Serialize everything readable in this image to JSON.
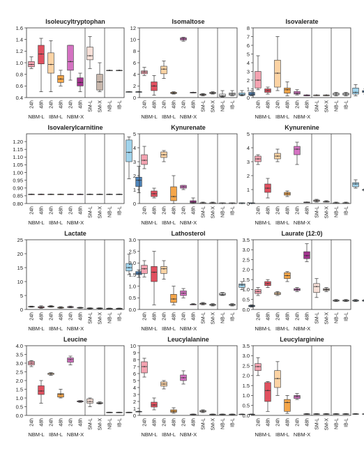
{
  "figure": {
    "category_groups": [
      {
        "label": "NBM-L",
        "ticks": [
          "24h",
          "48h"
        ]
      },
      {
        "label": "IBM-L",
        "ticks": [
          "24h",
          "48h"
        ]
      },
      {
        "label": "NBM-X",
        "ticks": [
          "24h",
          "48h"
        ]
      },
      {
        "label": "",
        "ticks": [
          "SM-L"
        ]
      },
      {
        "label": "",
        "ticks": [
          "SM-X"
        ]
      },
      {
        "label": "",
        "ticks": [
          "NB-L"
        ]
      },
      {
        "label": "",
        "ticks": [
          "IB-L"
        ]
      }
    ],
    "box_colors": [
      "#f4a3b1",
      "#e0505f",
      "#fcd3a4",
      "#f5a64a",
      "#d472c2",
      "#a3348f",
      "#f6dfd7",
      "#c8b7ac",
      "#ececec",
      "#d9d9d9",
      "#9fd3ec",
      "#4f86bd"
    ]
  },
  "chart_data": [
    {
      "type": "box",
      "title": "Isoleucyltryptophan",
      "ylim": [
        0.4,
        1.6
      ],
      "yticks": [
        0.4,
        0.6,
        0.8,
        1.0,
        1.2,
        1.4,
        1.6
      ],
      "boxes": [
        [
          0.9,
          0.93,
          0.97,
          1.02,
          1.1
        ],
        [
          0.5,
          0.98,
          1.15,
          1.3,
          1.42
        ],
        [
          0.5,
          0.82,
          0.97,
          1.17,
          1.38
        ],
        [
          0.6,
          0.66,
          0.72,
          0.78,
          0.87
        ],
        [
          0.7,
          0.87,
          1.02,
          1.3,
          1.3
        ],
        [
          0.5,
          0.6,
          0.66,
          0.74,
          0.82
        ],
        [
          0.9,
          1.05,
          1.12,
          1.27,
          1.45
        ],
        [
          0.5,
          0.53,
          0.67,
          0.8,
          1.0
        ],
        [
          0.87,
          0.87,
          0.87,
          0.87,
          0.87
        ],
        [
          0.87,
          0.87,
          0.87,
          0.87,
          0.87
        ],
        [
          0.5,
          0.5,
          0.5,
          0.5,
          0.5
        ],
        [
          0.5,
          0.5,
          0.5,
          0.5,
          0.5
        ]
      ]
    },
    {
      "type": "box",
      "title": "Isomaltose",
      "ylim": [
        0,
        12
      ],
      "yticks": [
        0,
        2,
        4,
        6,
        8,
        10,
        12
      ],
      "boxes": [
        [
          3.8,
          4.1,
          4.4,
          4.6,
          5.2
        ],
        [
          0.4,
          1.2,
          2.0,
          2.7,
          3.8
        ],
        [
          3.3,
          4.1,
          4.9,
          5.4,
          6.3
        ],
        [
          0.6,
          0.7,
          0.8,
          0.9,
          1.0
        ],
        [
          9.7,
          9.9,
          10.1,
          10.3,
          10.4
        ],
        [
          0.8,
          0.8,
          0.9,
          0.9,
          0.9
        ],
        [
          0.3,
          0.4,
          0.5,
          0.6,
          0.7
        ],
        [
          0.6,
          0.7,
          0.8,
          0.9,
          1.0
        ],
        [
          0.1,
          0.2,
          0.3,
          0.6,
          1.2
        ],
        [
          0.3,
          0.4,
          0.6,
          0.8,
          1.2
        ],
        [
          0.3,
          0.4,
          0.5,
          0.8,
          1.2
        ],
        [
          0.3,
          0.4,
          0.6,
          0.9,
          1.2
        ]
      ]
    },
    {
      "type": "box",
      "title": "Isovalerate",
      "ylim": [
        0,
        8
      ],
      "yticks": [
        0,
        1,
        2,
        3,
        4,
        5,
        6,
        7,
        8
      ],
      "boxes": [
        [
          0.9,
          1.1,
          2.0,
          3.0,
          4.8
        ],
        [
          0.4,
          0.6,
          0.8,
          1.0,
          1.2
        ],
        [
          0.8,
          1.2,
          2.8,
          4.3,
          7.0
        ],
        [
          0.2,
          0.5,
          0.9,
          1.1,
          1.8
        ],
        [
          0.3,
          0.4,
          0.5,
          0.7,
          0.9
        ],
        [
          0.2,
          0.2,
          0.3,
          0.3,
          0.3
        ],
        [
          0.2,
          0.2,
          0.3,
          0.3,
          0.3
        ],
        [
          0.2,
          0.2,
          0.3,
          0.3,
          0.3
        ],
        [
          0.2,
          0.3,
          0.4,
          0.5,
          0.6
        ],
        [
          0.2,
          0.3,
          0.4,
          0.5,
          0.6
        ],
        [
          0.2,
          0.4,
          0.6,
          1.1,
          1.5
        ],
        [
          0.4,
          0.6,
          0.7,
          0.8,
          1.0
        ]
      ]
    },
    {
      "type": "box",
      "title": "Isovalerylcarnitine",
      "ylim": [
        0.8,
        1.25
      ],
      "yticks": [
        0.8,
        0.85,
        0.9,
        0.95,
        1.0,
        1.05,
        1.1,
        1.15,
        1.2
      ],
      "boxes": [
        [
          0.86,
          0.86,
          0.86,
          0.86,
          0.86
        ],
        [
          0.86,
          0.86,
          0.86,
          0.86,
          0.86
        ],
        [
          0.86,
          0.86,
          0.86,
          0.86,
          0.86
        ],
        [
          0.86,
          0.86,
          0.86,
          0.86,
          0.86
        ],
        [
          0.86,
          0.86,
          0.86,
          0.86,
          0.86
        ],
        [
          0.86,
          0.86,
          0.86,
          0.86,
          0.86
        ],
        [
          0.86,
          0.86,
          0.86,
          0.86,
          0.86
        ],
        [
          0.86,
          0.86,
          0.86,
          0.86,
          0.86
        ],
        [
          0.86,
          0.86,
          0.86,
          0.86,
          0.86
        ],
        [
          0.86,
          0.86,
          0.86,
          0.86,
          0.86
        ],
        [
          0.96,
          1.07,
          1.13,
          1.21,
          1.23
        ],
        [
          0.87,
          0.91,
          0.95,
          0.97,
          1.04
        ]
      ]
    },
    {
      "type": "box",
      "title": "Kynurenate",
      "ylim": [
        0,
        5
      ],
      "yticks": [
        0,
        1,
        2,
        3,
        4,
        5
      ],
      "boxes": [
        [
          2.5,
          2.8,
          3.1,
          3.5,
          4.1
        ],
        [
          0.4,
          0.5,
          0.7,
          0.9,
          1.1
        ],
        [
          3.0,
          3.3,
          3.5,
          3.7,
          3.8
        ],
        [
          0.0,
          0.2,
          0.5,
          1.2,
          2.0
        ],
        [
          1.0,
          1.1,
          1.2,
          1.3,
          1.3
        ],
        [
          0.0,
          0.05,
          0.1,
          0.2,
          0.4
        ],
        [
          0.0,
          0.0,
          0.05,
          0.05,
          0.1
        ],
        [
          0.0,
          0.0,
          0.05,
          0.05,
          0.1
        ],
        [
          0.0,
          0.0,
          0.0,
          0.05,
          0.05
        ],
        [
          0.0,
          0.0,
          0.0,
          0.05,
          0.05
        ],
        [
          0.0,
          0.0,
          0.0,
          0.05,
          0.05
        ],
        [
          0.0,
          0.0,
          0.0,
          0.05,
          0.05
        ]
      ]
    },
    {
      "type": "box",
      "title": "Kynurenine",
      "ylim": [
        0,
        5
      ],
      "yticks": [
        0,
        1,
        2,
        3,
        4,
        5
      ],
      "boxes": [
        [
          2.8,
          3.0,
          3.2,
          3.4,
          3.5
        ],
        [
          0.4,
          0.8,
          1.1,
          1.4,
          1.8
        ],
        [
          3.0,
          3.2,
          3.4,
          3.6,
          3.9
        ],
        [
          0.5,
          0.6,
          0.7,
          0.8,
          0.9
        ],
        [
          2.8,
          3.5,
          3.9,
          4.1,
          4.4
        ],
        [
          0.1,
          0.1,
          0.1,
          0.1,
          0.1
        ],
        [
          0.1,
          0.15,
          0.2,
          0.25,
          0.3
        ],
        [
          0.1,
          0.1,
          0.15,
          0.15,
          0.2
        ],
        [
          0.0,
          0.0,
          0.05,
          0.05,
          0.1
        ],
        [
          0.0,
          0.0,
          0.05,
          0.05,
          0.1
        ],
        [
          1.1,
          1.2,
          1.4,
          1.5,
          1.7
        ],
        [
          0.9,
          0.95,
          1.0,
          1.0,
          1.05
        ]
      ]
    },
    {
      "type": "box",
      "title": "Lactate",
      "ylim": [
        0,
        25
      ],
      "yticks": [
        0,
        5,
        10,
        15,
        20,
        25
      ],
      "boxes": [
        [
          0.8,
          0.9,
          1.0,
          1.1,
          1.2
        ],
        [
          0.4,
          0.6,
          0.8,
          1.0,
          1.3
        ],
        [
          0.8,
          0.9,
          1.0,
          1.2,
          1.4
        ],
        [
          0.4,
          0.5,
          0.6,
          0.8,
          1.0
        ],
        [
          0.6,
          0.7,
          0.8,
          1.0,
          1.2
        ],
        [
          0.4,
          0.5,
          0.6,
          0.7,
          0.8
        ],
        [
          0.2,
          0.3,
          0.4,
          0.5,
          0.6
        ],
        [
          0.2,
          0.3,
          0.4,
          0.5,
          0.6
        ],
        [
          0.1,
          0.2,
          0.3,
          0.4,
          0.5
        ],
        [
          0.1,
          0.2,
          0.3,
          0.4,
          0.5
        ],
        [
          12.5,
          13.8,
          15.0,
          16.5,
          19.8
        ],
        [
          11.5,
          12.5,
          13.0,
          13.6,
          14.2
        ]
      ]
    },
    {
      "type": "box",
      "title": "Lathosterol",
      "ylim": [
        0,
        3.0
      ],
      "yticks": [
        0,
        0.5,
        1.0,
        1.5,
        2.0,
        2.5,
        3.0
      ],
      "boxes": [
        [
          1.4,
          1.55,
          1.75,
          1.9,
          2.1
        ],
        [
          0.2,
          1.2,
          1.6,
          1.85,
          2.5
        ],
        [
          1.3,
          1.55,
          1.75,
          1.85,
          2.1
        ],
        [
          0.2,
          0.3,
          0.45,
          0.65,
          1.0
        ],
        [
          0.5,
          0.6,
          0.7,
          0.8,
          0.9
        ],
        [
          0.2,
          0.2,
          0.22,
          0.22,
          0.25
        ],
        [
          0.2,
          0.22,
          0.25,
          0.27,
          0.3
        ],
        [
          0.15,
          0.18,
          0.2,
          0.22,
          0.25
        ],
        [
          0.6,
          0.62,
          0.65,
          0.7,
          0.73
        ],
        [
          0.15,
          0.18,
          0.2,
          0.22,
          0.25
        ],
        [
          0.85,
          0.95,
          1.05,
          1.1,
          1.2
        ],
        [
          0.1,
          0.12,
          0.15,
          0.18,
          0.2
        ]
      ]
    },
    {
      "type": "box",
      "title": "Laurate (12:0)",
      "ylim": [
        0,
        3.5
      ],
      "yticks": [
        0,
        0.5,
        1.0,
        1.5,
        2.0,
        2.5,
        3.0,
        3.5
      ],
      "boxes": [
        [
          0.7,
          0.8,
          0.9,
          1.0,
          1.1
        ],
        [
          1.1,
          1.2,
          1.3,
          1.4,
          1.5
        ],
        [
          0.7,
          0.75,
          0.8,
          0.85,
          0.9
        ],
        [
          1.4,
          1.55,
          1.7,
          1.85,
          1.9
        ],
        [
          0.9,
          0.95,
          1.0,
          1.05,
          1.1
        ],
        [
          2.4,
          2.55,
          2.7,
          2.9,
          3.3
        ],
        [
          0.6,
          0.85,
          1.15,
          1.3,
          1.55
        ],
        [
          0.9,
          0.95,
          1.0,
          1.05,
          1.1
        ],
        [
          0.4,
          0.42,
          0.45,
          0.47,
          0.5
        ],
        [
          0.4,
          0.42,
          0.45,
          0.47,
          0.5
        ],
        [
          0.4,
          0.42,
          0.45,
          0.47,
          0.5
        ],
        [
          0.4,
          0.42,
          0.45,
          0.47,
          0.5
        ]
      ]
    },
    {
      "type": "box",
      "title": "Leucine",
      "ylim": [
        0,
        4.0
      ],
      "yticks": [
        0,
        0.5,
        1.0,
        1.5,
        2.0,
        2.5,
        3.0,
        3.5,
        4.0
      ],
      "boxes": [
        [
          2.8,
          2.9,
          3.0,
          3.1,
          3.15
        ],
        [
          0.7,
          1.2,
          1.4,
          1.7,
          2.0
        ],
        [
          2.3,
          2.35,
          2.4,
          2.42,
          2.45
        ],
        [
          1.0,
          1.05,
          1.2,
          1.25,
          1.5
        ],
        [
          2.9,
          3.05,
          3.2,
          3.3,
          3.4
        ],
        [
          0.75,
          0.78,
          0.8,
          0.83,
          0.85
        ],
        [
          0.5,
          0.7,
          0.8,
          0.95,
          1.0
        ],
        [
          0.65,
          0.68,
          0.7,
          0.73,
          0.78
        ],
        [
          0.15,
          0.16,
          0.17,
          0.18,
          0.19
        ],
        [
          0.15,
          0.16,
          0.17,
          0.18,
          0.19
        ],
        [
          0.15,
          0.16,
          0.17,
          0.18,
          0.19
        ],
        [
          0.2,
          0.21,
          0.22,
          0.23,
          0.24
        ]
      ]
    },
    {
      "type": "box",
      "title": "Leucylalanine",
      "ylim": [
        0,
        10
      ],
      "yticks": [
        0,
        1,
        2,
        3,
        4,
        5,
        6,
        7,
        8,
        9,
        10
      ],
      "boxes": [
        [
          5.5,
          6.1,
          7.0,
          7.7,
          8.2
        ],
        [
          0.8,
          1.2,
          1.5,
          1.9,
          2.5
        ],
        [
          3.8,
          4.2,
          4.5,
          4.8,
          5.0
        ],
        [
          0.3,
          0.45,
          0.6,
          0.8,
          1.1
        ],
        [
          4.5,
          5.0,
          5.4,
          5.8,
          6.4
        ],
        [
          0.1,
          0.12,
          0.15,
          0.18,
          0.2
        ],
        [
          0.4,
          0.5,
          0.6,
          0.7,
          0.8
        ],
        [
          0.1,
          0.12,
          0.15,
          0.18,
          0.2
        ],
        [
          0.1,
          0.12,
          0.15,
          0.18,
          0.2
        ],
        [
          0.1,
          0.12,
          0.15,
          0.18,
          0.2
        ],
        [
          0.1,
          0.12,
          0.15,
          0.18,
          0.2
        ],
        [
          0.1,
          0.12,
          0.15,
          0.18,
          0.2
        ]
      ]
    },
    {
      "type": "box",
      "title": "Leucylarginine",
      "ylim": [
        0,
        3.5
      ],
      "yticks": [
        0,
        0.5,
        1.0,
        1.5,
        2.0,
        2.5,
        3.0,
        3.5
      ],
      "boxes": [
        [
          2.0,
          2.25,
          2.45,
          2.6,
          2.9
        ],
        [
          0.2,
          0.7,
          1.25,
          1.65,
          1.7
        ],
        [
          1.0,
          1.4,
          1.85,
          2.25,
          2.7
        ],
        [
          0.1,
          0.2,
          0.65,
          0.8,
          1.0
        ],
        [
          0.8,
          0.85,
          0.95,
          1.0,
          1.1
        ],
        [
          0.05,
          0.06,
          0.07,
          0.08,
          0.09
        ],
        [
          0.05,
          0.06,
          0.07,
          0.08,
          0.09
        ],
        [
          0.05,
          0.06,
          0.07,
          0.08,
          0.09
        ],
        [
          0.05,
          0.06,
          0.07,
          0.08,
          0.09
        ],
        [
          0.05,
          0.06,
          0.07,
          0.08,
          0.09
        ],
        [
          0.05,
          0.06,
          0.07,
          0.08,
          0.09
        ],
        [
          0.05,
          0.06,
          0.07,
          0.08,
          0.09
        ]
      ]
    }
  ]
}
